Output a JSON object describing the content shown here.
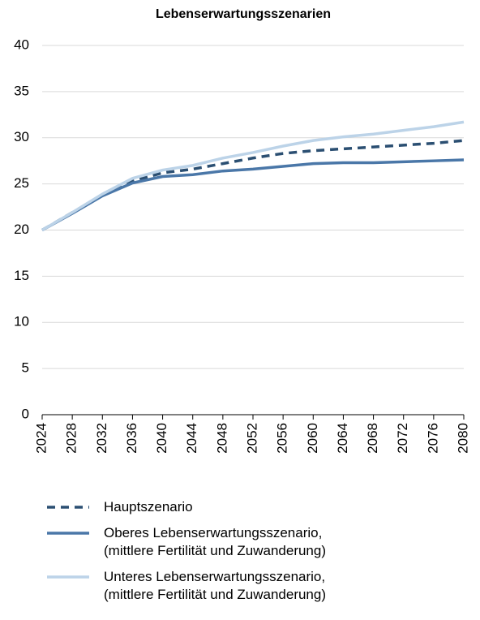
{
  "chart_data": {
    "type": "line",
    "title": "Lebenserwartungsszenarien",
    "x": [
      2024,
      2028,
      2032,
      2036,
      2040,
      2044,
      2048,
      2052,
      2056,
      2060,
      2064,
      2068,
      2072,
      2076,
      2080
    ],
    "series": [
      {
        "name": "Hauptszenario",
        "color": "#2b4f72",
        "dashed": true,
        "values": [
          20,
          21.9,
          23.8,
          25.3,
          26.2,
          26.6,
          27.2,
          27.8,
          28.3,
          28.6,
          28.8,
          29.0,
          29.2,
          29.4,
          29.7
        ]
      },
      {
        "name": "Oberes Lebenserwartungsszenario,\n(mittlere Fertilität und Zuwanderung)",
        "color": "#4a77a8",
        "dashed": false,
        "values": [
          20,
          21.8,
          23.7,
          25.1,
          25.8,
          26.0,
          26.4,
          26.6,
          26.9,
          27.2,
          27.3,
          27.3,
          27.4,
          27.5,
          27.6
        ]
      },
      {
        "name": "Unteres Lebenserwartungsszenario,\n(mittlere Fertilität und Zuwanderung)",
        "color": "#bcd3e8",
        "dashed": false,
        "values": [
          20,
          21.9,
          23.9,
          25.6,
          26.5,
          27.0,
          27.8,
          28.4,
          29.1,
          29.7,
          30.1,
          30.4,
          30.8,
          31.2,
          31.7
        ]
      }
    ],
    "xlim": [
      2024,
      2080
    ],
    "xticks": [
      2024,
      2028,
      2032,
      2036,
      2040,
      2044,
      2048,
      2052,
      2056,
      2060,
      2064,
      2068,
      2072,
      2076,
      2080
    ],
    "ylim": [
      0,
      40
    ],
    "yticks": [
      0,
      5,
      10,
      15,
      20,
      25,
      30,
      35,
      40
    ],
    "grid": true
  }
}
